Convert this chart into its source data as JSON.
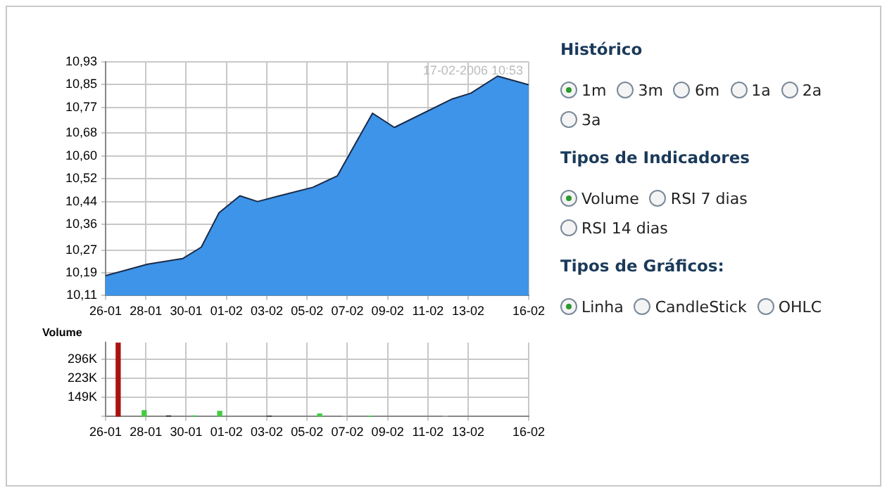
{
  "chart_data": [
    {
      "type": "area",
      "x": [
        "2006-01-26",
        "2006-01-28T02:00",
        "2006-01-29T20:00",
        "2006-01-30T18:00",
        "2006-01-31T15:00",
        "2006-02-01T16:00",
        "2006-02-02T13:00",
        "2006-02-03T15:00",
        "2006-02-05T07:00",
        "2006-02-06T12:00",
        "2006-02-08T06:00",
        "2006-02-09T08:00",
        "2006-02-12T05:00",
        "2006-02-13T03:00",
        "2006-02-14T11:00",
        "2006-02-16"
      ],
      "series": [
        {
          "color": "#3d94e8",
          "values": [
            10.18,
            10.22,
            10.24,
            10.28,
            10.4,
            10.46,
            10.44,
            10.46,
            10.49,
            10.53,
            10.75,
            10.7,
            10.8,
            10.82,
            10.88,
            10.85
          ]
        }
      ],
      "xlim": [
        "2006-01-26",
        "2006-02-16"
      ],
      "xticks": [
        {
          "value": "2006-01-26",
          "label": "26-01"
        },
        {
          "value": "2006-01-28",
          "label": "28-01"
        },
        {
          "value": "2006-01-30",
          "label": "30-01"
        },
        {
          "value": "2006-02-01",
          "label": "01-02"
        },
        {
          "value": "2006-02-03",
          "label": "03-02"
        },
        {
          "value": "2006-02-05",
          "label": "05-02"
        },
        {
          "value": "2006-02-07",
          "label": "07-02"
        },
        {
          "value": "2006-02-09",
          "label": "09-02"
        },
        {
          "value": "2006-02-11",
          "label": "11-02"
        },
        {
          "value": "2006-02-13",
          "label": "13-02"
        },
        {
          "value": "2006-02-16",
          "label": "16-02"
        }
      ],
      "ylim": [
        10.11,
        10.93
      ],
      "yticks": [
        {
          "value": 10.11,
          "label": "10,11"
        },
        {
          "value": 10.19,
          "label": "10,19"
        },
        {
          "value": 10.27,
          "label": "10,27"
        },
        {
          "value": 10.36,
          "label": "10,36"
        },
        {
          "value": 10.44,
          "label": "10,44"
        },
        {
          "value": 10.52,
          "label": "10,52"
        },
        {
          "value": 10.6,
          "label": "10,60"
        },
        {
          "value": 10.68,
          "label": "10,68"
        },
        {
          "value": 10.77,
          "label": "10,77"
        },
        {
          "value": 10.85,
          "label": "10,85"
        },
        {
          "value": 10.93,
          "label": "10,93"
        }
      ],
      "grid": true,
      "marker": "none",
      "annotations": [
        "17-02-2006 10:53"
      ]
    },
    {
      "type": "bar",
      "title": "Volume",
      "x": [
        "2006-01-26T15:00",
        "2006-01-27T22:00",
        "2006-01-29T03:00",
        "2006-01-30T09:00",
        "2006-01-31T16:00",
        "2006-02-03T03:00",
        "2006-02-05T15:00",
        "2006-02-06T21:00",
        "2006-02-08T03:00",
        "2006-02-11T21:00"
      ],
      "values": [
        359000,
        98000,
        78000,
        78000,
        95000,
        77000,
        85000,
        77000,
        77000,
        77000
      ],
      "colors": [
        "#aa1111",
        "#44cc44",
        "#333333",
        "#44cc44",
        "#44cc44",
        "#333333",
        "#44cc44",
        "#aaaaaa",
        "#44cc44",
        "#aaaaaa"
      ],
      "xlim": [
        "2006-01-26",
        "2006-02-16"
      ],
      "xticks": [
        {
          "value": "2006-01-26",
          "label": "26-01"
        },
        {
          "value": "2006-01-28",
          "label": "28-01"
        },
        {
          "value": "2006-01-30",
          "label": "30-01"
        },
        {
          "value": "2006-02-01",
          "label": "01-02"
        },
        {
          "value": "2006-02-03",
          "label": "03-02"
        },
        {
          "value": "2006-02-05",
          "label": "05-02"
        },
        {
          "value": "2006-02-07",
          "label": "07-02"
        },
        {
          "value": "2006-02-09",
          "label": "09-02"
        },
        {
          "value": "2006-02-11",
          "label": "11-02"
        },
        {
          "value": "2006-02-13",
          "label": "13-02"
        },
        {
          "value": "2006-02-16",
          "label": "16-02"
        }
      ],
      "ylim": [
        75000,
        360000
      ],
      "yticks": [
        {
          "value": 75000,
          "label": null
        },
        {
          "value": 149000,
          "label": "149K"
        },
        {
          "value": 223000,
          "label": "223K"
        },
        {
          "value": 296000,
          "label": "296K"
        }
      ],
      "grid": true
    },
    {
      "type": "other",
      "title": "Histórico",
      "categories": [
        "1m",
        "3m",
        "6m",
        "1a",
        "2a",
        "3a"
      ]
    },
    {
      "type": "other",
      "title": "Tipos de Indicadores",
      "categories": [
        "Volume",
        "RSI 7 dias",
        "RSI 14 dias"
      ]
    },
    {
      "type": "other",
      "title": "Tipos de Gráficos:",
      "categories": [
        "Linha",
        "CandleStick",
        "OHLC"
      ]
    }
  ]
}
